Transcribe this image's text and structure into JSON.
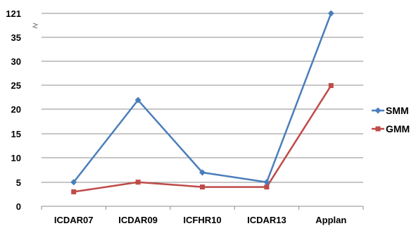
{
  "chart_data": {
    "type": "line",
    "categories": [
      "ICDAR07",
      "ICDAR09",
      "ICFHR10",
      "ICDAR13",
      "Applan"
    ],
    "y_tick_labels": [
      "0",
      "5",
      "10",
      "15",
      "20",
      "25",
      "30",
      "35",
      "121"
    ],
    "y_axis_break": "between 35 and 121",
    "grid": true,
    "legend_position": "right",
    "series": [
      {
        "name": "SMM",
        "color": "#4a7ebb",
        "marker": "diamond",
        "values": [
          5,
          22,
          7,
          5,
          121
        ]
      },
      {
        "name": "GMM",
        "color": "#be4b48",
        "marker": "square",
        "values": [
          3,
          5,
          4,
          4,
          25
        ]
      }
    ]
  }
}
